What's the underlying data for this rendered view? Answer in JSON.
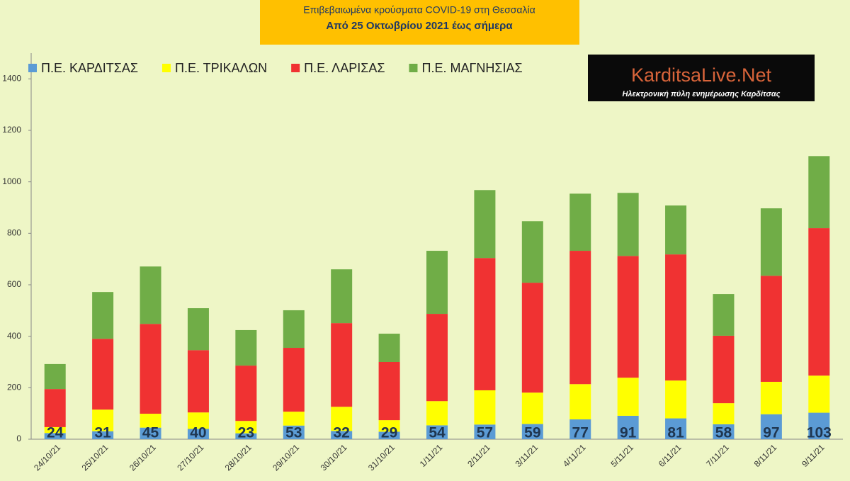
{
  "chart_data": {
    "type": "stacked_bar",
    "title": "Επιβεβαιωμένα κρούσματα COVID-19 στη Θεσσαλία",
    "subtitle": "Από 25 Οκτωβρίου 2021 έως σήμερα",
    "logo": {
      "name": "KarditsaLive.Net",
      "tagline": "Ηλεκτρονική πύλη ενημέρωσης Καρδίτσας"
    },
    "categories": [
      "24/10/21",
      "25/10/21",
      "26/10/21",
      "27/10/21",
      "28/10/21",
      "29/10/21",
      "30/10/21",
      "31/10/21",
      "1/11/21",
      "2/11/21",
      "3/11/21",
      "4/11/21",
      "5/11/21",
      "6/11/21",
      "7/11/21",
      "8/11/21",
      "9/11/21"
    ],
    "series": [
      {
        "name": "Π.Ε. ΚΑΡΔΙΤΣΑΣ",
        "color": "#5b9bd5",
        "values": [
          24,
          31,
          45,
          40,
          23,
          53,
          32,
          29,
          54,
          57,
          59,
          77,
          91,
          81,
          58,
          97,
          103
        ]
      },
      {
        "name": "Π.Ε. ΤΡΙΚΑΛΩΝ",
        "color": "#ffff00",
        "values": [
          23,
          84,
          54,
          64,
          48,
          54,
          94,
          45,
          94,
          133,
          122,
          137,
          148,
          147,
          82,
          126,
          144
        ]
      },
      {
        "name": "Π.Ε. ΛΑΡΙΣΑΣ",
        "color": "#f03232",
        "values": [
          148,
          275,
          349,
          242,
          215,
          248,
          325,
          226,
          339,
          514,
          427,
          518,
          473,
          490,
          262,
          412,
          573
        ]
      },
      {
        "name": "Π.Ε. ΜΑΓΝΗΣΙΑΣ",
        "color": "#70ad47",
        "values": [
          97,
          182,
          223,
          163,
          138,
          146,
          209,
          110,
          245,
          264,
          239,
          222,
          245,
          190,
          162,
          262,
          280
        ]
      }
    ],
    "ylim": [
      0,
      1500
    ],
    "yticks": [
      0,
      200,
      400,
      600,
      800,
      1000,
      1200,
      1400
    ],
    "grid": false,
    "legend": "top-left",
    "data_labels_series": 0
  }
}
